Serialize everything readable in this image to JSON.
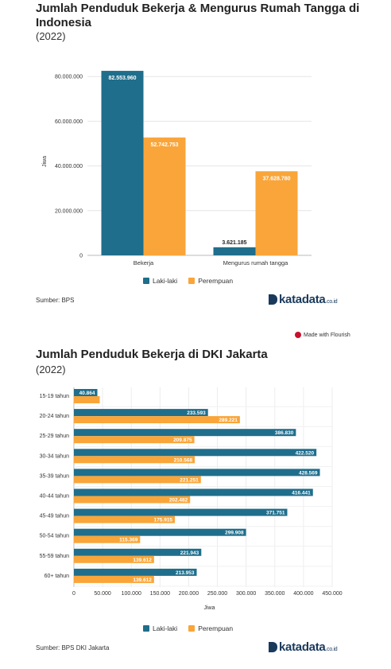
{
  "chart1": {
    "title": "Jumlah Penduduk Bekerja & Mengurus Rumah Tangga di Indonesia",
    "subtitle": "(2022)",
    "source": "Sumber: BPS",
    "logo": "katadata",
    "logo_tld": ".co.id"
  },
  "chart2": {
    "title": "Jumlah Penduduk Bekerja di DKI Jakarta",
    "subtitle": "(2022)",
    "source": "Sumber: BPS DKI Jakarta",
    "logo": "katadata",
    "logo_tld": ".co.id"
  },
  "flourish_label": "Made with Flourish",
  "colors": {
    "laki": "#1f6e8c",
    "perempuan": "#f9a53a"
  },
  "chart_data": [
    {
      "type": "bar",
      "orientation": "vertical",
      "categories": [
        "Bekerja",
        "Mengurus rumah tangga"
      ],
      "series": [
        {
          "name": "Laki-laki",
          "values": [
            82553960,
            3621185
          ],
          "labels": [
            "82.553.960",
            "3.621.185"
          ]
        },
        {
          "name": "Perempuan",
          "values": [
            52742753,
            37628780
          ],
          "labels": [
            "52.742.753",
            "37.628.780"
          ]
        }
      ],
      "ylabel": "Jiwa",
      "ylim": [
        0,
        84000000
      ],
      "yticks": [
        0,
        20000000,
        40000000,
        60000000,
        80000000
      ],
      "ytick_labels": [
        "0",
        "20.000.000",
        "40.000.000",
        "60.000.000",
        "80.000.000"
      ],
      "legend": "bottom",
      "grid": true
    },
    {
      "type": "bar",
      "orientation": "horizontal",
      "categories": [
        "15-19 tahun",
        "20-24 tahun",
        "25-29 tahun",
        "30-34 tahun",
        "35-39 tahun",
        "40-44 tahun",
        "45-49 tahun",
        "50-54 tahun",
        "55-59 tahun",
        "60+ tahun"
      ],
      "series": [
        {
          "name": "Laki-laki",
          "values": [
            40864,
            233593,
            386830,
            422520,
            428569,
            416441,
            371751,
            299908,
            221943,
            213953
          ],
          "labels": [
            "40.864",
            "233.593",
            "386.830",
            "422.520",
            "428.569",
            "416.441",
            "371.751",
            "299.908",
            "221.943",
            "213.953"
          ]
        },
        {
          "name": "Perempuan",
          "values": [
            45000,
            289221,
            209875,
            210568,
            221251,
            202482,
            175915,
            115369,
            139612,
            139612
          ],
          "labels": [
            "",
            "289.221",
            "209.875",
            "210.568",
            "221.251",
            "202.482",
            "175.915",
            "115.369",
            "139.612",
            "139.612"
          ]
        }
      ],
      "xlabel": "Jiwa",
      "xlim": [
        0,
        450000
      ],
      "xticks": [
        0,
        50000,
        100000,
        150000,
        200000,
        250000,
        300000,
        350000,
        400000,
        450000
      ],
      "xtick_labels": [
        "0",
        "50.000",
        "100.000",
        "150.000",
        "200.000",
        "250.000",
        "300.000",
        "350.000",
        "400.000",
        "450.000"
      ],
      "legend": "bottom",
      "grid": true
    }
  ]
}
